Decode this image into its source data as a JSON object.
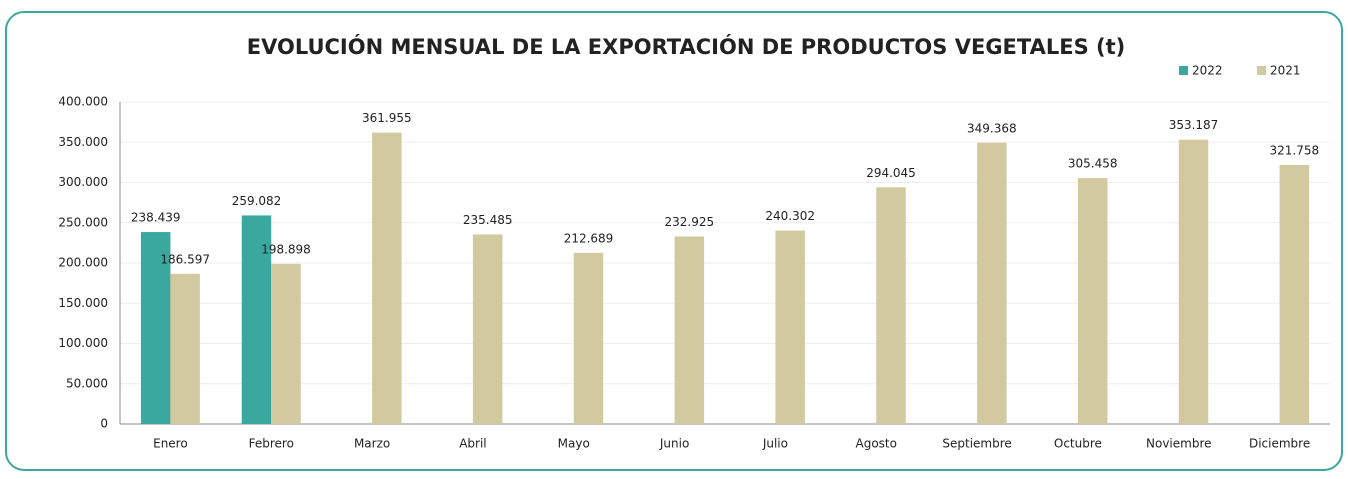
{
  "chart_data": {
    "type": "bar",
    "title": "EVOLUCIÓN MENSUAL DE LA EXPORTACIÓN DE PRODUCTOS VEGETALES (t)",
    "categories": [
      "Enero",
      "Febrero",
      "Marzo",
      "Abril",
      "Mayo",
      "Junio",
      "Julio",
      "Agosto",
      "Septiembre",
      "Octubre",
      "Noviembre",
      "Diciembre"
    ],
    "series": [
      {
        "name": "2022",
        "color": "#3aa89e",
        "values": [
          238439,
          259082,
          null,
          null,
          null,
          null,
          null,
          null,
          null,
          null,
          null,
          null
        ],
        "value_labels": [
          "238.439",
          "259.082",
          null,
          null,
          null,
          null,
          null,
          null,
          null,
          null,
          null,
          null
        ]
      },
      {
        "name": "2021",
        "color": "#d3c9a0",
        "values": [
          186597,
          198898,
          361955,
          235485,
          212689,
          232925,
          240302,
          294045,
          349368,
          305458,
          353187,
          321758
        ],
        "value_labels": [
          "186.597",
          "198.898",
          "361.955",
          "235.485",
          "212.689",
          "232.925",
          "240.302",
          "294.045",
          "349.368",
          "305.458",
          "353.187",
          "321.758"
        ]
      }
    ],
    "ylim": [
      0,
      400000
    ],
    "yticks": [
      0,
      {
        "value": 50000,
        "label": "50.000"
      },
      {
        "value": 100000,
        "label": "100.000"
      },
      {
        "value": 150000,
        "label": "150.000"
      },
      {
        "value": 200000,
        "label": "200.000"
      },
      {
        "value": 250000,
        "label": "250.000"
      },
      {
        "value": 300000,
        "label": "300.000"
      },
      {
        "value": 350000,
        "label": "350.000"
      },
      {
        "value": 400000,
        "label": "400.000"
      }
    ],
    "grid": true,
    "legend": "top-right"
  }
}
